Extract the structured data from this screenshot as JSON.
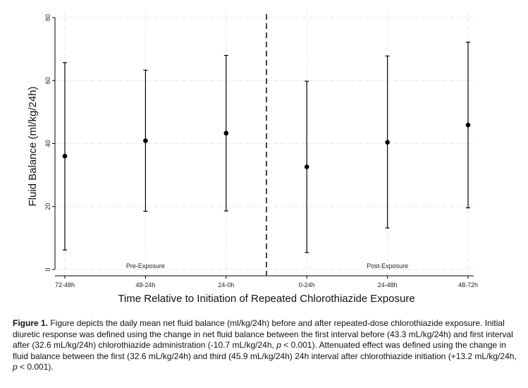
{
  "chart_data": {
    "type": "scatter",
    "categories": [
      "72-48h",
      "48-24h",
      "24-0h",
      "0-24h",
      "24-48h",
      "48-72h"
    ],
    "means": [
      36.0,
      40.9,
      43.3,
      32.6,
      40.4,
      45.9
    ],
    "lower": [
      6.2,
      18.5,
      18.6,
      5.4,
      13.2,
      19.6
    ],
    "upper": [
      65.7,
      63.3,
      68.0,
      59.8,
      67.8,
      72.2
    ],
    "xlabel": "Time Relative to Initiation of Repeated Chlorothiazide Exposure",
    "ylabel": "Fluid Balance (ml/kg/24h)",
    "ylim": [
      -2,
      82
    ],
    "yticks": [
      0,
      20,
      40,
      60,
      80
    ],
    "grid": true,
    "divider_after_index": 2,
    "annotations": [
      {
        "text": "Pre-Exposure",
        "x_index": 1
      },
      {
        "text": "Post-Exposure",
        "x_index": 4
      }
    ]
  },
  "caption": {
    "label": "Figure 1.",
    "text_1": " Figure depicts the daily mean net fluid balance (ml/kg/24h) before and after repeated-dose chlorothiazide exposure. Initial diuretic response was defined using the change in net fluid balance between the first interval before (43.3 mL/kg/24h) and first interval after (32.6 mL/kg/24h) chlorothiazide administration (-10.7 mL/kg/24h, ",
    "p_1": "p",
    "text_2": " < 0.001). Attenuated effect was defined using the change in fluid balance between the first (32.6 mL/kg/24h) and third (45.9 mL/kg/24h) 24h interval after chlorothiazide initiation (+13.2 mL/kg/24h, ",
    "p_2": "p",
    "text_3": " < 0.001)."
  }
}
